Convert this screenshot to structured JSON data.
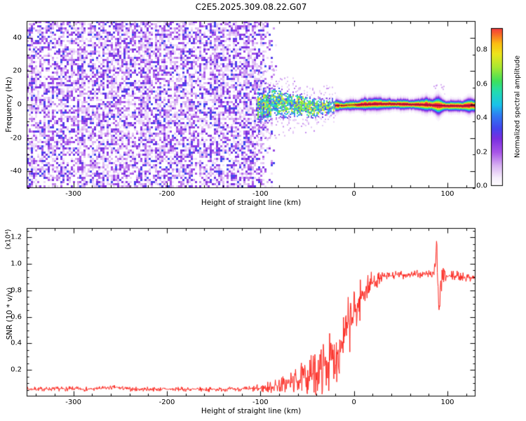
{
  "chart_data": [
    {
      "type": "heatmap",
      "title": "C2E5.2025.309.08.22.G07",
      "xlabel": "Height of straight line (km)",
      "ylabel": "Frequency (Hz)",
      "xlim": [
        -350,
        130
      ],
      "ylim": [
        -50,
        50
      ],
      "xticks": [
        -300,
        -200,
        -100,
        0,
        100
      ],
      "xminor_step": 20,
      "yticks": [
        -40,
        -20,
        0,
        20,
        40
      ],
      "yminor_step": 10,
      "colorbar": {
        "label": "Normalized spectral amplitude",
        "ticks": [
          0.0,
          0.2,
          0.4,
          0.6,
          0.8
        ],
        "range": [
          0,
          0.93
        ]
      },
      "colormap": [
        {
          "v": 0.0,
          "c": "#ffffff"
        },
        {
          "v": 0.05,
          "c": "#f6eefc"
        },
        {
          "v": 0.12,
          "c": "#d9b3f2"
        },
        {
          "v": 0.2,
          "c": "#a855e8"
        },
        {
          "v": 0.28,
          "c": "#7a2ee0"
        },
        {
          "v": 0.34,
          "c": "#4444ee"
        },
        {
          "v": 0.42,
          "c": "#2f7df2"
        },
        {
          "v": 0.48,
          "c": "#19c3ea"
        },
        {
          "v": 0.56,
          "c": "#23dcae"
        },
        {
          "v": 0.62,
          "c": "#3fe05a"
        },
        {
          "v": 0.7,
          "c": "#a8e832"
        },
        {
          "v": 0.78,
          "c": "#eee51c"
        },
        {
          "v": 0.84,
          "c": "#fbbd12"
        },
        {
          "v": 0.9,
          "c": "#f8622a"
        },
        {
          "v": 0.96,
          "c": "#ee1350"
        },
        {
          "v": 1.0,
          "c": "#d40f45"
        }
      ],
      "regions": {
        "noise": {
          "x_start": -350,
          "x_end": -104,
          "fade_end": -82,
          "density": 0.78,
          "amp_min": 0.06,
          "amp_max": 0.36
        },
        "chaotic_band": {
          "x_start": -103,
          "x_end": -20,
          "half_width_start_hz": 10,
          "half_width_end_hz": 4,
          "amp_min": 0.3,
          "amp_max": 0.8
        },
        "stable_band": {
          "x_start": -20,
          "x_end": 130,
          "half_width_hz": 2.4,
          "core_amp": 0.95,
          "center_line_color": "#6b0d1f"
        },
        "bump": {
          "x": 90,
          "half_width_km": 7,
          "extra_width_hz": 2.0
        }
      }
    },
    {
      "type": "line",
      "xlabel": "Height of straight line (km)",
      "ylabel": "SNR (10 * v/v)",
      "scale_label": "(x10⁴)",
      "xlim": [
        -350,
        130
      ],
      "ylim": [
        0,
        1.27
      ],
      "xticks": [
        -300,
        -200,
        -100,
        0,
        100
      ],
      "xminor_step": 20,
      "yticks": [
        0.2,
        0.4,
        0.6,
        0.8,
        1.0,
        1.2
      ],
      "yminor_step": 0.05,
      "color": "#fb241c",
      "envelope": [
        [
          -350,
          0.055
        ],
        [
          -300,
          0.058
        ],
        [
          -280,
          0.055
        ],
        [
          -255,
          0.068
        ],
        [
          -240,
          0.055
        ],
        [
          -200,
          0.055
        ],
        [
          -160,
          0.053
        ],
        [
          -130,
          0.055
        ],
        [
          -110,
          0.056
        ],
        [
          -100,
          0.06
        ],
        [
          -90,
          0.07
        ],
        [
          -80,
          0.085
        ],
        [
          -70,
          0.1
        ],
        [
          -60,
          0.12
        ],
        [
          -50,
          0.15
        ],
        [
          -40,
          0.18
        ],
        [
          -30,
          0.24
        ],
        [
          -20,
          0.3
        ],
        [
          -15,
          0.38
        ],
        [
          -10,
          0.45
        ],
        [
          -5,
          0.55
        ],
        [
          0,
          0.62
        ],
        [
          5,
          0.7
        ],
        [
          10,
          0.78
        ],
        [
          15,
          0.83
        ],
        [
          20,
          0.86
        ],
        [
          25,
          0.88
        ],
        [
          30,
          0.9
        ],
        [
          40,
          0.91
        ],
        [
          55,
          0.92
        ],
        [
          70,
          0.92
        ],
        [
          85,
          0.93
        ],
        [
          87,
          0.98
        ],
        [
          88.5,
          1.2
        ],
        [
          90,
          0.75
        ],
        [
          91.5,
          0.6
        ],
        [
          93,
          0.88
        ],
        [
          96,
          0.9
        ],
        [
          110,
          0.91
        ],
        [
          120,
          0.9
        ],
        [
          130,
          0.9
        ]
      ],
      "noise_profile": [
        [
          -350,
          0.01
        ],
        [
          -120,
          0.01
        ],
        [
          -100,
          0.02
        ],
        [
          -80,
          0.035
        ],
        [
          -60,
          0.06
        ],
        [
          -45,
          0.09
        ],
        [
          -30,
          0.12
        ],
        [
          -20,
          0.13
        ],
        [
          -10,
          0.13
        ],
        [
          0,
          0.12
        ],
        [
          8,
          0.09
        ],
        [
          15,
          0.06
        ],
        [
          22,
          0.04
        ],
        [
          30,
          0.02
        ],
        [
          80,
          0.018
        ],
        [
          86,
          0.05
        ],
        [
          93,
          0.06
        ],
        [
          98,
          0.025
        ],
        [
          130,
          0.018
        ]
      ]
    }
  ]
}
